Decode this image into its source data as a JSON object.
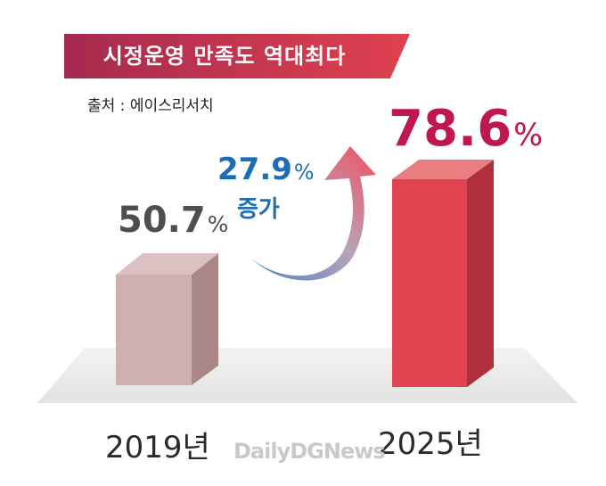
{
  "title": "시정운영 만족도 역대최다",
  "source": "출처 : 에이스리서치",
  "watermark": "DailyDGNews",
  "increase": {
    "value": "27.9",
    "unit": "%",
    "word": "증가"
  },
  "colors": {
    "bar_2019": "#cfb0b1",
    "bar_2025": "#e0434f",
    "banner": "#c3304f",
    "increase_text": "#1c6eb4"
  },
  "chart_data": {
    "type": "bar",
    "categories": [
      "2019년",
      "2025년"
    ],
    "values": [
      50.7,
      78.6
    ],
    "value_labels": [
      "50.7",
      "78.6"
    ],
    "unit": "%",
    "title": "시정운영 만족도 역대최다"
  }
}
